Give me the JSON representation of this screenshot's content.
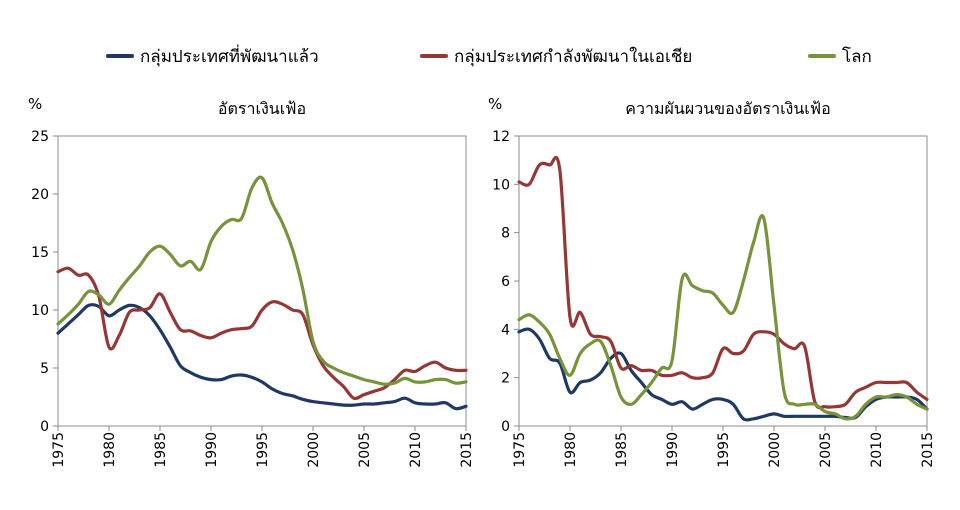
{
  "legend": [
    {
      "label": "กลุ่มประเทศที่พัฒนาแล้ว",
      "color": "#1f3864"
    },
    {
      "label": "กลุ่มประเทศกำลังพัฒนาในเอเชีย",
      "color": "#953735"
    },
    {
      "label": "โลก",
      "color": "#77933c"
    }
  ],
  "chart_data": [
    {
      "type": "line",
      "title": "อัตราเงินเฟ้อ",
      "ylabel": "%",
      "xlabel": "",
      "ylim": [
        0,
        25
      ],
      "yticks": [
        0,
        5,
        10,
        15,
        20,
        25
      ],
      "xlim": [
        1975,
        2015
      ],
      "xticks": [
        1975,
        1980,
        1985,
        1990,
        1995,
        2000,
        2005,
        2010,
        2015
      ],
      "x": [
        1975,
        1976,
        1977,
        1978,
        1979,
        1980,
        1981,
        1982,
        1983,
        1984,
        1985,
        1986,
        1987,
        1988,
        1989,
        1990,
        1991,
        1992,
        1993,
        1994,
        1995,
        1996,
        1997,
        1998,
        1999,
        2000,
        2001,
        2002,
        2003,
        2004,
        2005,
        2006,
        2007,
        2008,
        2009,
        2010,
        2011,
        2012,
        2013,
        2014,
        2015
      ],
      "series": [
        {
          "name": "กลุ่มประเทศที่พัฒนาแล้ว",
          "color": "#1f3864",
          "values": [
            8.0,
            8.8,
            9.6,
            10.4,
            10.3,
            9.5,
            10.0,
            10.4,
            10.2,
            9.5,
            8.3,
            6.8,
            5.2,
            4.6,
            4.2,
            4.0,
            4.0,
            4.3,
            4.4,
            4.2,
            3.8,
            3.2,
            2.8,
            2.6,
            2.3,
            2.1,
            2.0,
            1.9,
            1.8,
            1.8,
            1.9,
            1.9,
            2.0,
            2.1,
            2.4,
            2.0,
            1.9,
            1.9,
            2.0,
            1.5,
            1.7
          ]
        },
        {
          "name": "กลุ่มประเทศกำลังพัฒนาในเอเชีย",
          "color": "#953735",
          "values": [
            13.3,
            13.6,
            13.0,
            13.0,
            11.2,
            6.8,
            7.8,
            9.8,
            10.0,
            10.2,
            11.4,
            9.8,
            8.3,
            8.2,
            7.8,
            7.6,
            8.0,
            8.3,
            8.4,
            8.6,
            10.0,
            10.7,
            10.5,
            10.0,
            9.6,
            7.0,
            5.2,
            4.2,
            3.4,
            2.4,
            2.7,
            3.0,
            3.3,
            4.0,
            4.8,
            4.7,
            5.2,
            5.5,
            5.0,
            4.8,
            4.8
          ]
        },
        {
          "name": "โลก",
          "color": "#77933c",
          "values": [
            8.8,
            9.6,
            10.5,
            11.6,
            11.3,
            10.5,
            11.7,
            12.8,
            13.8,
            15.0,
            15.5,
            14.8,
            13.8,
            14.2,
            13.5,
            15.9,
            17.2,
            17.8,
            17.9,
            20.5,
            21.4,
            19.2,
            17.5,
            15.2,
            11.8,
            7.3,
            5.6,
            5.0,
            4.6,
            4.3,
            4.0,
            3.8,
            3.6,
            3.7,
            4.1,
            3.8,
            3.8,
            4.0,
            4.0,
            3.7,
            3.8
          ]
        }
      ]
    },
    {
      "type": "line",
      "title": "ความผันผวนของอัตราเงินเฟ้อ",
      "ylabel": "%",
      "xlabel": "",
      "ylim": [
        0,
        12
      ],
      "yticks": [
        0,
        2,
        4,
        6,
        8,
        10,
        12
      ],
      "xlim": [
        1975,
        2015
      ],
      "xticks": [
        1975,
        1980,
        1985,
        1990,
        1995,
        2000,
        2005,
        2010,
        2015
      ],
      "x": [
        1975,
        1976,
        1977,
        1978,
        1979,
        1980,
        1981,
        1982,
        1983,
        1984,
        1985,
        1986,
        1987,
        1988,
        1989,
        1990,
        1991,
        1992,
        1993,
        1994,
        1995,
        1996,
        1997,
        1998,
        1999,
        2000,
        2001,
        2002,
        2003,
        2004,
        2005,
        2006,
        2007,
        2008,
        2009,
        2010,
        2011,
        2012,
        2013,
        2014,
        2015
      ],
      "series": [
        {
          "name": "กลุ่มประเทศที่พัฒนาแล้ว",
          "color": "#1f3864",
          "values": [
            3.9,
            4.0,
            3.6,
            2.8,
            2.6,
            1.4,
            1.8,
            1.9,
            2.2,
            2.8,
            3.0,
            2.3,
            1.8,
            1.3,
            1.1,
            0.9,
            1.0,
            0.7,
            0.9,
            1.1,
            1.1,
            0.9,
            0.3,
            0.3,
            0.4,
            0.5,
            0.4,
            0.4,
            0.4,
            0.4,
            0.4,
            0.4,
            0.35,
            0.35,
            0.8,
            1.1,
            1.2,
            1.2,
            1.2,
            1.1,
            0.7
          ]
        },
        {
          "name": "กลุ่มประเทศกำลังพัฒนาในเอเชีย",
          "color": "#953735",
          "values": [
            10.1,
            10.0,
            10.8,
            10.8,
            10.6,
            4.5,
            4.7,
            3.8,
            3.7,
            3.5,
            2.4,
            2.5,
            2.3,
            2.3,
            2.1,
            2.1,
            2.2,
            2.0,
            2.0,
            2.2,
            3.2,
            3.0,
            3.1,
            3.8,
            3.9,
            3.8,
            3.4,
            3.2,
            3.3,
            1.0,
            0.8,
            0.8,
            0.9,
            1.4,
            1.6,
            1.8,
            1.8,
            1.8,
            1.8,
            1.4,
            1.1
          ]
        },
        {
          "name": "โลก",
          "color": "#77933c",
          "values": [
            4.4,
            4.6,
            4.3,
            3.8,
            2.8,
            2.1,
            3.0,
            3.4,
            3.5,
            2.5,
            1.2,
            0.9,
            1.3,
            1.8,
            2.4,
            2.7,
            6.1,
            5.8,
            5.6,
            5.5,
            5.0,
            4.7,
            6.0,
            7.6,
            8.6,
            5.0,
            1.4,
            0.9,
            0.9,
            0.9,
            0.6,
            0.5,
            0.3,
            0.4,
            0.9,
            1.2,
            1.2,
            1.3,
            1.2,
            0.9,
            0.7
          ]
        }
      ]
    }
  ]
}
